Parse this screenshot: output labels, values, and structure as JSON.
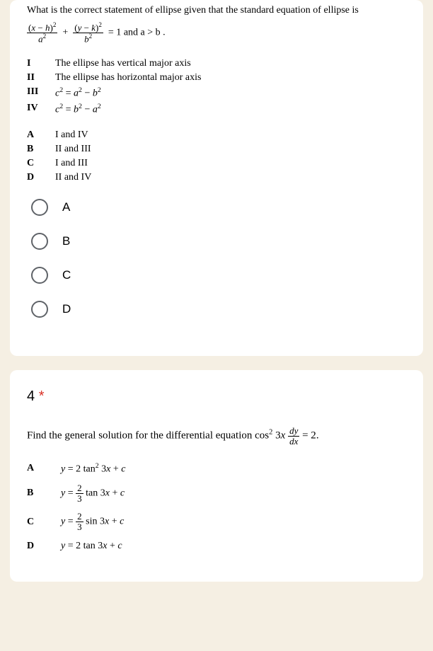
{
  "colors": {
    "page_bg": "#f5efe3",
    "card_bg": "#ffffff",
    "text": "#000000",
    "radio_border": "#5f6368",
    "required": "#d93025"
  },
  "q3": {
    "stem": "What is the correct statement of ellipse given that the standard equation of ellipse is",
    "eq_tail": " and a > b .",
    "statements": [
      {
        "label": "I",
        "text": "The ellipse has vertical major axis"
      },
      {
        "label": "II",
        "text": "The ellipse has horizontal major axis"
      },
      {
        "label": "III",
        "text": "c² = a² − b²"
      },
      {
        "label": "IV",
        "text": "c² = b² − a²"
      }
    ],
    "combos": [
      {
        "label": "A",
        "text": "I and IV"
      },
      {
        "label": "B",
        "text": "II and III"
      },
      {
        "label": "C",
        "text": "I and III"
      },
      {
        "label": "D",
        "text": "II and IV"
      }
    ],
    "options": [
      "A",
      "B",
      "C",
      "D"
    ]
  },
  "q4": {
    "number": "4",
    "required": "*",
    "stem_prefix": "Find the general solution for the differential equation ",
    "stem_suffix": ".",
    "choices": [
      {
        "label": "A"
      },
      {
        "label": "B"
      },
      {
        "label": "C"
      },
      {
        "label": "D"
      }
    ]
  }
}
